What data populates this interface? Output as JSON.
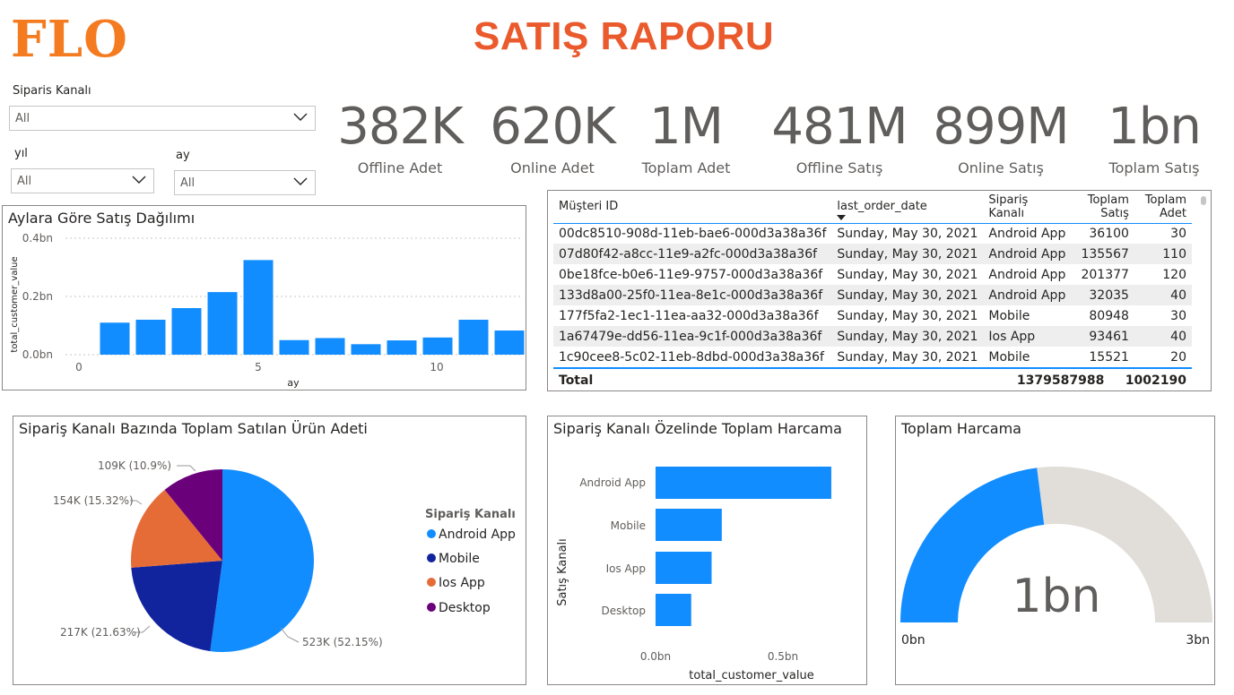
{
  "logo_text": "FLO",
  "report_title": "SATIŞ RAPORU",
  "slicers": {
    "channel_label": "Siparis Kanalı",
    "channel_value": "All",
    "year_label": "yıl",
    "year_value": "All",
    "month_label": "ay",
    "month_value": "All"
  },
  "kpis": [
    {
      "value": "382K",
      "label": "Offline Adet"
    },
    {
      "value": "620K",
      "label": "Online Adet"
    },
    {
      "value": "1M",
      "label": "Toplam Adet"
    },
    {
      "value": "481M",
      "label": "Offline Satış"
    },
    {
      "value": "899M",
      "label": "Online Satış"
    },
    {
      "value": "1bn",
      "label": "Toplam Satış"
    }
  ],
  "monthly_chart": {
    "title": "Aylara Göre Satış Dağılımı",
    "ylabel": "total_customer_value",
    "xlabel": "ay",
    "yticks": [
      "0.4bn",
      "0.2bn",
      "0.0bn"
    ],
    "xticks": [
      "0",
      "5",
      "10"
    ]
  },
  "table": {
    "headers": [
      "Müşteri ID",
      "last_order_date",
      "Sipariş Kanalı",
      "Toplam Satış",
      "Toplam Adet"
    ],
    "rows": [
      [
        "00dc8510-908d-11eb-bae6-000d3a38a36f",
        "Sunday, May 30, 2021",
        "Android App",
        "36100",
        "30"
      ],
      [
        "07d80f42-a8cc-11e9-a2fc-000d3a38a36f",
        "Sunday, May 30, 2021",
        "Android App",
        "135567",
        "110"
      ],
      [
        "0be18fce-b0e6-11e9-9757-000d3a38a36f",
        "Sunday, May 30, 2021",
        "Android App",
        "201377",
        "120"
      ],
      [
        "133d8a00-25f0-11ea-8e1c-000d3a38a36f",
        "Sunday, May 30, 2021",
        "Android App",
        "32035",
        "40"
      ],
      [
        "177f5fa2-1ec1-11ea-aa32-000d3a38a36f",
        "Sunday, May 30, 2021",
        "Mobile",
        "80948",
        "30"
      ],
      [
        "1a67479e-dd56-11ea-9c1f-000d3a38a36f",
        "Sunday, May 30, 2021",
        "Ios App",
        "93461",
        "40"
      ],
      [
        "1c90cee8-5c02-11eb-8dbd-000d3a38a36f",
        "Sunday, May 30, 2021",
        "Mobile",
        "15521",
        "20"
      ]
    ],
    "total_label": "Total",
    "total_sales": "1379587988",
    "total_qty": "1002190"
  },
  "pie_chart": {
    "title": "Sipariş Kanalı Bazında Toplam Satılan Ürün Adeti",
    "legend_title": "Sipariş Kanalı"
  },
  "hbar_chart": {
    "title": "Sipariş Kanalı Özelinde Toplam Harcama",
    "ylabel": "Satış Kanalı",
    "xlabel": "total_customer_value",
    "xticks": [
      "0.0bn",
      "0.5bn"
    ]
  },
  "gauge": {
    "title": "Toplam Harcama",
    "value_label": "1bn",
    "min_label": "0bn",
    "max_label": "3bn",
    "value": 1.38,
    "min": 0,
    "max": 3,
    "fill_color": "#118dff",
    "track_color": "#e1ddd8"
  },
  "chart_data": [
    {
      "type": "bar",
      "title": "Aylara Göre Satış Dağılımı",
      "xlabel": "ay",
      "ylabel": "total_customer_value",
      "categories": [
        1,
        2,
        3,
        4,
        5,
        6,
        7,
        8,
        9,
        10,
        11,
        12
      ],
      "values": [
        0.11,
        0.12,
        0.16,
        0.215,
        0.325,
        0.05,
        0.057,
        0.036,
        0.049,
        0.059,
        0.12,
        0.083
      ],
      "ylim": [
        0,
        0.4
      ],
      "xlim": [
        -0.5,
        12.4
      ],
      "color": "#118dff"
    },
    {
      "type": "pie",
      "title": "Sipariş Kanalı Bazında Toplam Satılan Ürün Adeti",
      "categories": [
        "Android App",
        "Mobile",
        "Ios App",
        "Desktop"
      ],
      "values": [
        523,
        217,
        154,
        109
      ],
      "labels": [
        "523K (52.15%)",
        "217K (21.63%)",
        "154K (15.32%)",
        "109K (10.9%)"
      ],
      "colors": [
        "#118dff",
        "#12239e",
        "#e66c37",
        "#6b007b"
      ],
      "legend": "right"
    },
    {
      "type": "bar",
      "orientation": "horizontal",
      "title": "Sipariş Kanalı Özelinde Toplam Harcama",
      "xlabel": "total_customer_value",
      "ylabel": "Satış Kanalı",
      "categories": [
        "Android App",
        "Mobile",
        "Ios App",
        "Desktop"
      ],
      "values": [
        0.69,
        0.26,
        0.22,
        0.14
      ],
      "xlim": [
        0,
        0.75
      ],
      "color": "#118dff"
    }
  ]
}
